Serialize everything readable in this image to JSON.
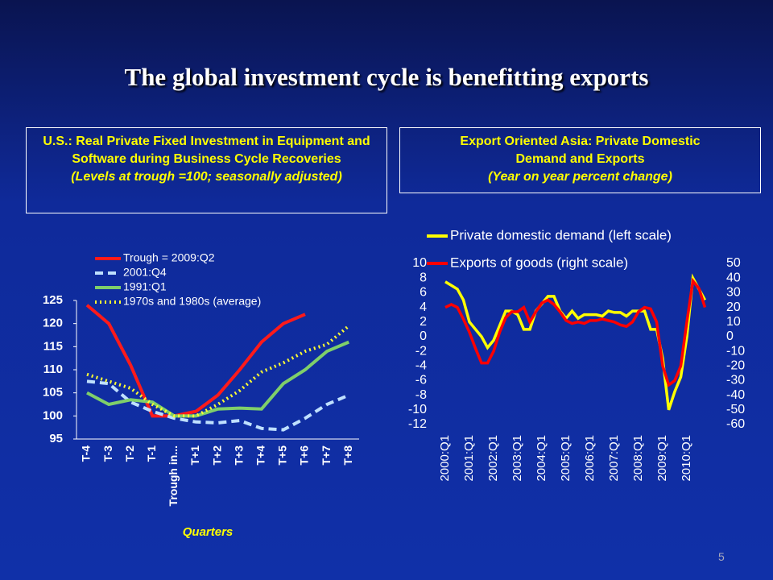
{
  "title": "The global investment cycle is benefitting exports",
  "page_number": "5",
  "chart_data": [
    {
      "type": "line",
      "title": "U.S.: Real Private Fixed Investment in Equipment and Software during Business Cycle Recoveries",
      "subtitle": "(Levels at trough =100; seasonally adjusted)",
      "x_label": "Quarters",
      "categories": [
        "T-4",
        "T-3",
        "T-2",
        "T-1",
        "Trough in...",
        "T+1",
        "T+2",
        "T+3",
        "T+4",
        "T+5",
        "T+6",
        "T+7",
        "T+8"
      ],
      "ylim": [
        95,
        125
      ],
      "yticks": [
        95,
        100,
        105,
        110,
        115,
        120,
        125
      ],
      "series": [
        {
          "name": "Trough = 2009:Q2",
          "color": "#ff1a1a",
          "style": "solid",
          "values": [
            124,
            120,
            111,
            100,
            100,
            101,
            104.5,
            110,
            116,
            120,
            122,
            null,
            null
          ]
        },
        {
          "name": "2001:Q4",
          "color": "#bfe0ff",
          "style": "dashed",
          "values": [
            107.5,
            107,
            103,
            101,
            99.5,
            98.7,
            98.5,
            99,
            97.3,
            97,
            99.5,
            102.5,
            104.5
          ]
        },
        {
          "name": "1991:Q1",
          "color": "#7fcf6a",
          "style": "solid",
          "values": [
            105,
            102.5,
            103.5,
            103,
            100,
            100,
            101.5,
            101.7,
            101.5,
            107,
            110,
            114,
            116
          ]
        },
        {
          "name": "1970s and 1980s (average)",
          "color": "#ffff33",
          "style": "dotted",
          "values": [
            109,
            107.5,
            106,
            102.5,
            100,
            100,
            102.5,
            105.5,
            109.5,
            111.5,
            114,
            115.5,
            119.5
          ]
        }
      ]
    },
    {
      "type": "line",
      "title": "Export Oriented Asia: Private Domestic Demand and Exports",
      "subtitle": "(Year on year  percent change)",
      "categories": [
        "2000:Q1",
        null,
        null,
        null,
        "2001:Q1",
        null,
        null,
        null,
        "2002:Q1",
        null,
        null,
        null,
        "2003:Q1",
        null,
        null,
        null,
        "2004:Q1",
        null,
        null,
        null,
        "2005:Q1",
        null,
        null,
        null,
        "2006:Q1",
        null,
        null,
        null,
        "2007:Q1",
        null,
        null,
        null,
        "2008:Q1",
        null,
        null,
        null,
        "2009:Q1",
        null,
        null,
        null,
        "2010:Q1",
        null,
        null,
        null
      ],
      "ylim": [
        -12,
        10
      ],
      "yticks": [
        -12,
        -10,
        -8,
        -6,
        -4,
        -2,
        0,
        2,
        4,
        6,
        8,
        10
      ],
      "y2lim": [
        -60,
        50
      ],
      "y2ticks": [
        -60,
        -50,
        -40,
        -30,
        -20,
        -10,
        0,
        10,
        20,
        30,
        40,
        50
      ],
      "series": [
        {
          "name": "Private domestic demand (left scale)",
          "color": "#ffff00",
          "style": "solid",
          "values": [
            7.5,
            7,
            6.5,
            5,
            2,
            1,
            0,
            -1.5,
            -0.5,
            1.5,
            3.5,
            3.5,
            3,
            1,
            1,
            3.5,
            4.5,
            5.5,
            5.5,
            3.5,
            2.5,
            3.5,
            2.5,
            3,
            3,
            3,
            2.8,
            3.5,
            3.3,
            3.3,
            2.8,
            3.5,
            3.5,
            3.5,
            1,
            1,
            -3,
            -10,
            -7.5,
            -5.5,
            0,
            8,
            6.5,
            5
          ]
        },
        {
          "name": "Exports of goods (right scale)",
          "color": "#ff0000",
          "style": "solid",
          "axis": "y2",
          "values": [
            20,
            22,
            20,
            12,
            3,
            -8,
            -18,
            -18,
            -10,
            3,
            13,
            17,
            17,
            20,
            10,
            17,
            23,
            25,
            22,
            17,
            11,
            9,
            10,
            9,
            11,
            11,
            12,
            11,
            10,
            8,
            7,
            10,
            17,
            20,
            19,
            10,
            -20,
            -33,
            -30,
            -20,
            10,
            38,
            33,
            20
          ]
        }
      ]
    }
  ]
}
